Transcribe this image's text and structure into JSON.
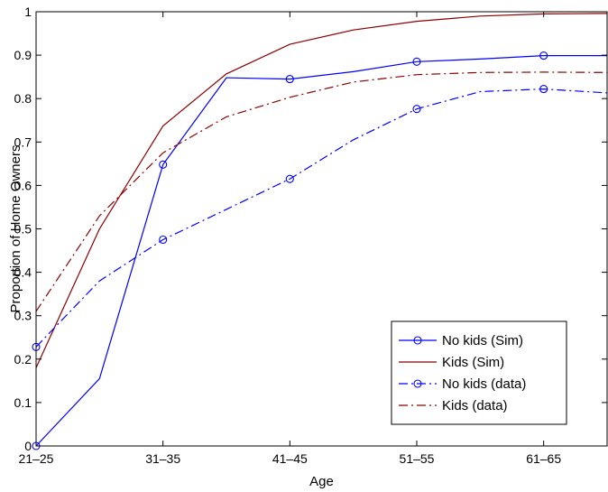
{
  "chart_data": {
    "type": "line",
    "title": "",
    "xlabel": "Age",
    "ylabel": "Proportion of Home Owners",
    "x_tick_labels": [
      "21–25",
      "31–35",
      "41–45",
      "51–55",
      "61–65"
    ],
    "y_tick_labels": [
      "0",
      "0.1",
      "0.2",
      "0.3",
      "0.4",
      "0.5",
      "0.6",
      "0.7",
      "0.8",
      "0.9",
      "1"
    ],
    "ylim": [
      0,
      1
    ],
    "grid": false,
    "legend_position": "bottom-right",
    "series": [
      {
        "name": "No kids (Sim)",
        "color": "#0000ff",
        "line_style": "solid",
        "marker": "circle",
        "y": [
          0.0,
          0.155,
          0.648,
          0.848,
          0.845,
          0.862,
          0.885,
          0.891,
          0.899,
          0.899
        ]
      },
      {
        "name": "Kids (Sim)",
        "color": "#8b0000",
        "line_style": "solid",
        "marker": "none",
        "y": [
          0.18,
          0.5,
          0.737,
          0.857,
          0.925,
          0.958,
          0.978,
          0.99,
          0.995,
          0.996
        ]
      },
      {
        "name": "No kids (data)",
        "color": "#0000ff",
        "line_style": "dashdot",
        "marker": "circle",
        "y": [
          0.228,
          0.38,
          0.475,
          0.545,
          0.615,
          0.705,
          0.776,
          0.816,
          0.822,
          0.813
        ]
      },
      {
        "name": "Kids (data)",
        "color": "#8b0000",
        "line_style": "dashdot",
        "marker": "none",
        "y": [
          0.31,
          0.53,
          0.675,
          0.758,
          0.803,
          0.838,
          0.855,
          0.86,
          0.861,
          0.86
        ]
      }
    ]
  }
}
